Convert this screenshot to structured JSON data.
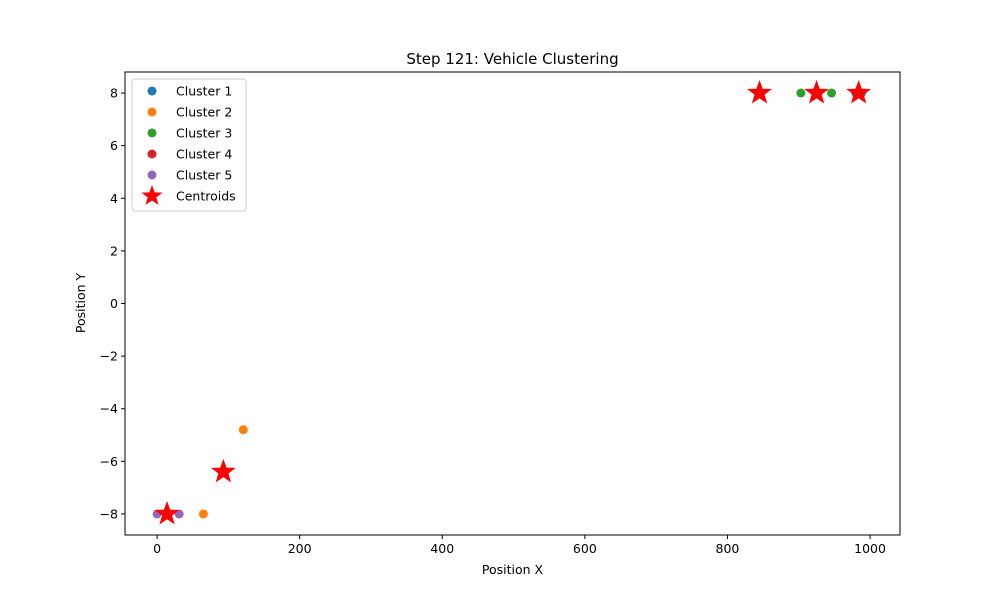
{
  "chart_data": {
    "type": "scatter",
    "title": "Step 121: Vehicle Clustering",
    "xlabel": "Position X",
    "ylabel": "Position Y",
    "xlim": [
      -45,
      1042
    ],
    "ylim": [
      -8.8,
      8.8
    ],
    "xticks": [
      0,
      200,
      400,
      600,
      800,
      1000
    ],
    "yticks": [
      -8,
      -6,
      -4,
      -2,
      0,
      2,
      4,
      6,
      8
    ],
    "grid": false,
    "legend_position": "top-left",
    "series": [
      {
        "name": "Cluster 1",
        "color": "#1f77b4",
        "points": [
          [
            980,
            8
          ],
          [
            988,
            8
          ]
        ]
      },
      {
        "name": "Cluster 2",
        "color": "#ff7f0e",
        "points": [
          [
            65,
            -8
          ],
          [
            121,
            -4.8
          ]
        ]
      },
      {
        "name": "Cluster 3",
        "color": "#2ca02c",
        "points": [
          [
            903,
            8
          ],
          [
            946,
            8
          ]
        ]
      },
      {
        "name": "Cluster 4",
        "color": "#d62728",
        "points": []
      },
      {
        "name": "Cluster 5",
        "color": "#9467bd",
        "points": [
          [
            0,
            -8
          ],
          [
            31,
            -8
          ]
        ]
      }
    ],
    "centroids": {
      "name": "Centroids",
      "color": "#ff0000",
      "points": [
        [
          845,
          8
        ],
        [
          925,
          8
        ],
        [
          984,
          8
        ],
        [
          93,
          -6.4
        ],
        [
          14,
          -8
        ]
      ]
    }
  }
}
